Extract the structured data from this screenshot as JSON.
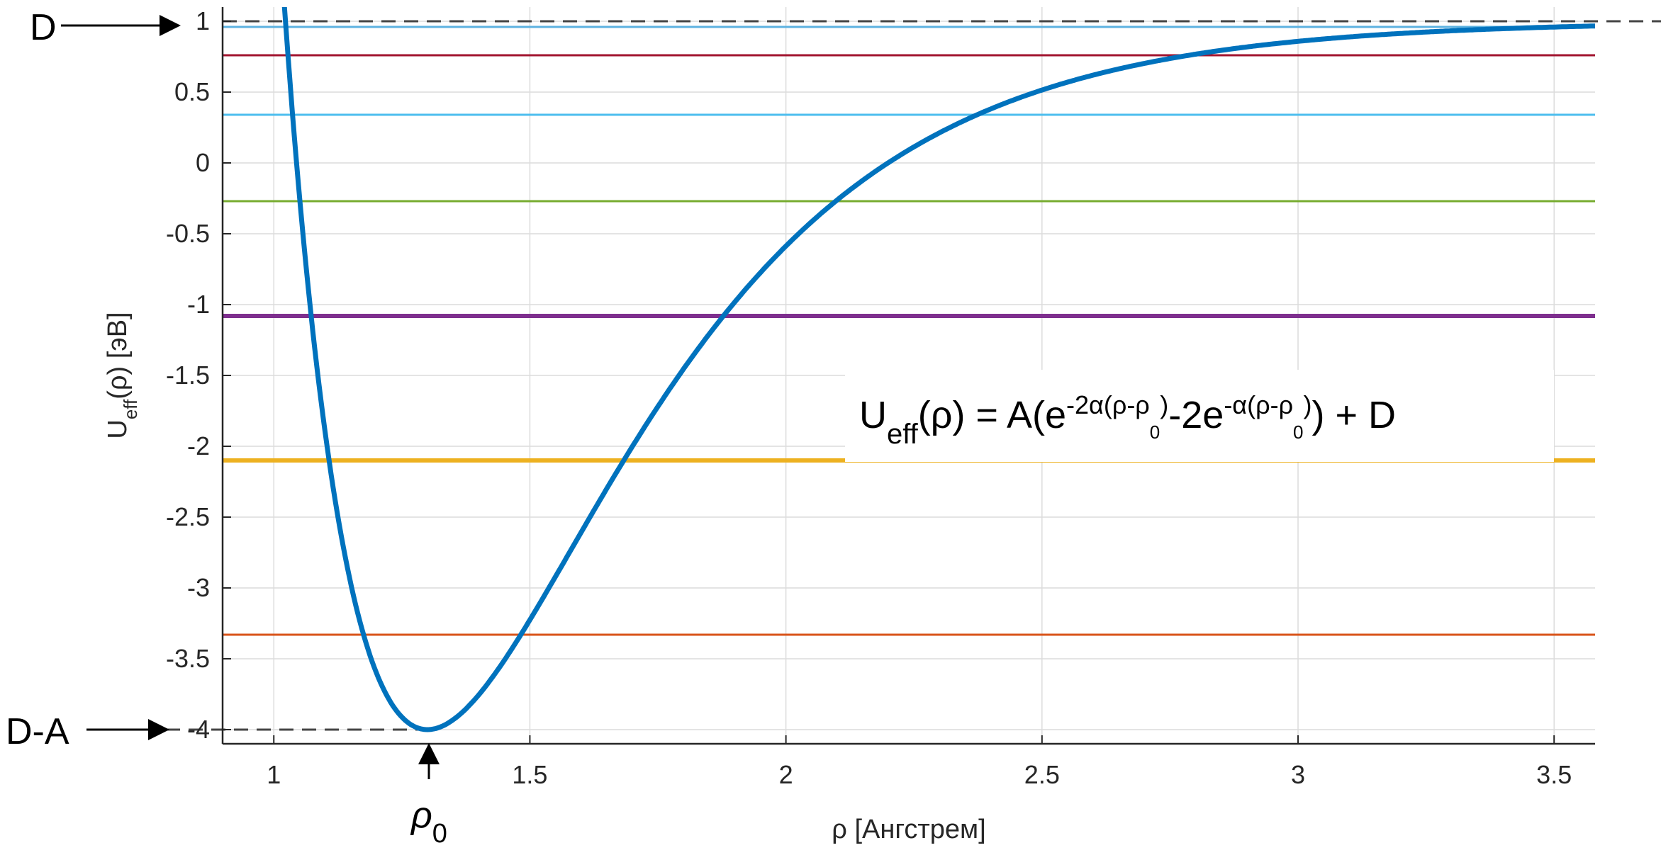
{
  "chart_data": {
    "type": "line",
    "title": "",
    "xlabel": "ρ [Ангстрем]",
    "ylabel": "U",
    "ylabel_sub": "eff",
    "ylabel_rest": "(ρ) [эВ]",
    "xlim": [
      0.9,
      3.58
    ],
    "ylim": [
      -4.1,
      1.1
    ],
    "grid": true,
    "x_ticks": [
      1,
      1.5,
      2,
      2.5,
      3,
      3.5
    ],
    "x_tick_labels": [
      "1",
      "1.5",
      "2",
      "2.5",
      "3",
      "3.5"
    ],
    "y_ticks": [
      1,
      0.5,
      0,
      -0.5,
      -1,
      -1.5,
      -2,
      -2.5,
      -3,
      -3.5,
      -4
    ],
    "y_tick_labels": [
      "1",
      "0.5",
      "0",
      "-0.5",
      "-1",
      "-1.5",
      "-2",
      "-2.5",
      "-3",
      "-3.5",
      "-4"
    ],
    "series": [
      {
        "style": "morse-curve",
        "color": "#0072BD",
        "parameters": {
          "A": 5,
          "D": 1,
          "alpha": 2.5,
          "rho0": 1.3
        }
      }
    ],
    "energy_levels": [
      {
        "y": 0.96,
        "color": "#5DB2E0"
      },
      {
        "y": 0.76,
        "color": "#A2142F"
      },
      {
        "y": 0.34,
        "color": "#4DBEEE"
      },
      {
        "y": -0.27,
        "color": "#77AC30"
      },
      {
        "y": -1.08,
        "color": "#7E2F8E"
      },
      {
        "y": -2.1,
        "color": "#EDB120"
      },
      {
        "y": -3.33,
        "color": "#D95319"
      }
    ],
    "dashed_guides": [
      {
        "y": 1.0,
        "x_start": 0.9,
        "x_end": 3.58
      },
      {
        "y": -4.0,
        "x_start": 0.9,
        "x_end": 1.3
      }
    ],
    "annotations": {
      "top_arrow_label": "D",
      "bottom_arrow_label": "D-A",
      "rho0_label": "ρ",
      "rho0_sub": "0",
      "formula": {
        "lhs_main": "U",
        "lhs_sub": "eff",
        "lhs_rest": "(ρ) = A(e",
        "exp1": "-2α(ρ-ρ",
        "exp_sub": "0",
        "exp_close": ")",
        "mid": "-2e",
        "exp2": "-α(ρ-ρ",
        "tail": ") + D"
      }
    }
  }
}
